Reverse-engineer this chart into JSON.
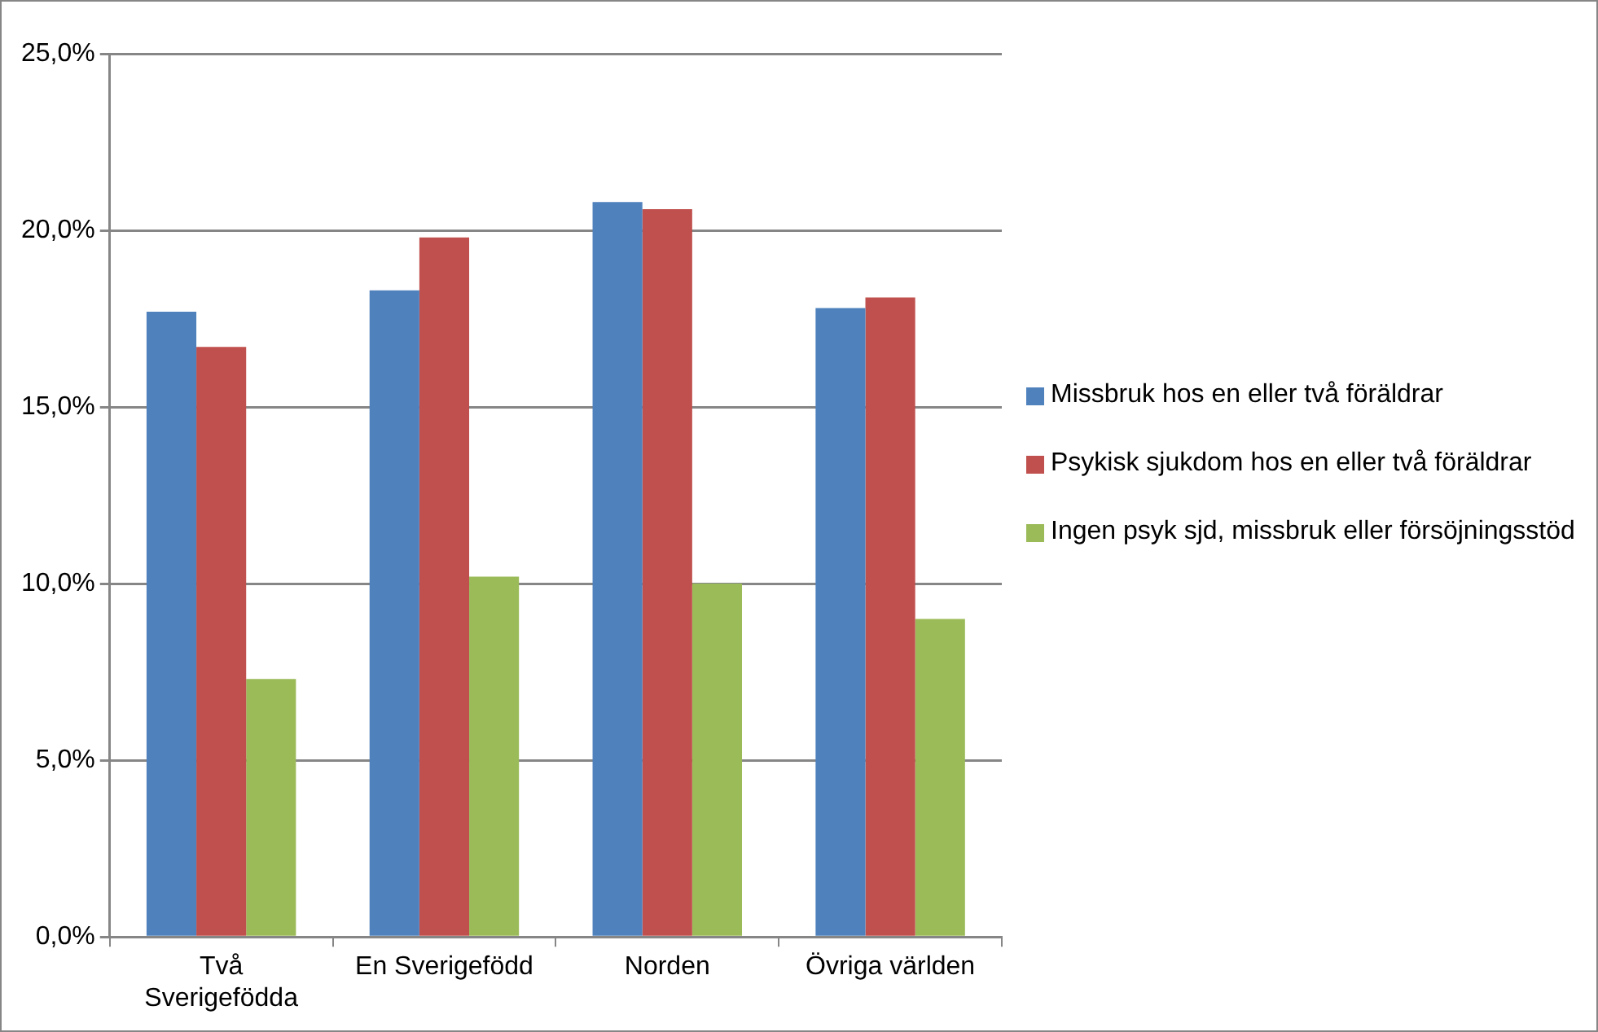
{
  "chart_data": {
    "type": "bar",
    "categories": [
      "Två Sverigefödda",
      "En Sverigefödd",
      "Norden",
      "Övriga världen"
    ],
    "series": [
      {
        "name": "Missbruk hos en eller två föräldrar",
        "color": "#4f81bd",
        "values": [
          17.7,
          18.3,
          20.8,
          17.8
        ]
      },
      {
        "name": "Psykisk sjukdom hos en eller två föräldrar",
        "color": "#c0504d",
        "values": [
          16.7,
          19.8,
          20.6,
          18.1
        ]
      },
      {
        "name": "Ingen psyk sjd, missbruk eller försöjningsstöd",
        "color": "#9bbb59",
        "values": [
          7.3,
          10.2,
          10.0,
          9.0
        ]
      }
    ],
    "ylim": [
      0,
      25
    ],
    "yticks": [
      {
        "value": 0,
        "label": "0,0%"
      },
      {
        "value": 5,
        "label": "5,0%"
      },
      {
        "value": 10,
        "label": "10,0%"
      },
      {
        "value": 15,
        "label": "15,0%"
      },
      {
        "value": 20,
        "label": "20,0%"
      },
      {
        "value": 25,
        "label": "25,0%"
      }
    ],
    "grid": "y",
    "legend": "right"
  }
}
